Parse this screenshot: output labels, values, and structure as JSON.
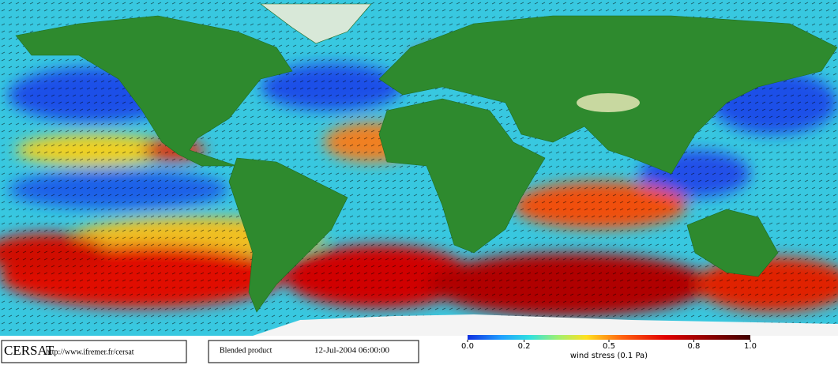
{
  "footer": {
    "logo": "CERSAT",
    "url": "http://www.ifremer.fr/cersat",
    "product": "Blended product",
    "datetime": "12-Jul-2004 06:00:00"
  },
  "colorbar": {
    "label": "wind stress (0.1 Pa)",
    "range": [
      0,
      1
    ],
    "ticks": [
      {
        "value": 0,
        "label": "0.0"
      },
      0.2,
      0.5,
      0.8,
      {
        "value": 1,
        "label": "1.0"
      }
    ]
  }
}
